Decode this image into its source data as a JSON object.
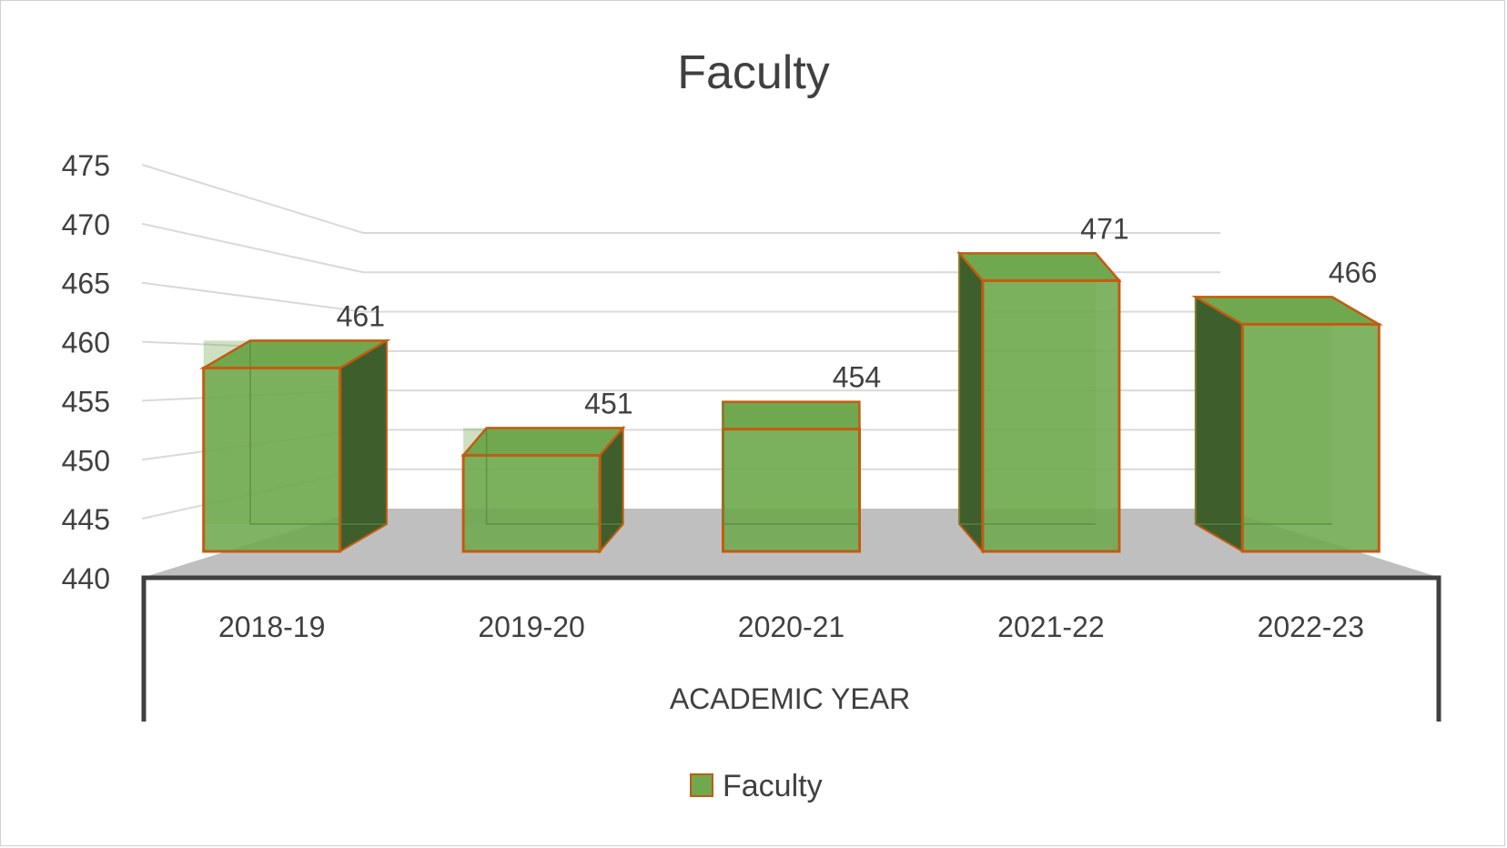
{
  "chart_data": {
    "type": "bar",
    "style": "3d-column",
    "title": "Faculty",
    "xlabel": "ACADEMIC YEAR",
    "ylabel": "",
    "categories": [
      "2018-19",
      "2019-20",
      "2020-21",
      "2021-22",
      "2022-23"
    ],
    "series": [
      {
        "name": "Faculty",
        "values": [
          461,
          451,
          454,
          471,
          466
        ]
      }
    ],
    "ylim": [
      440,
      475
    ],
    "yticks": [
      "440",
      "445",
      "450",
      "455",
      "460",
      "465",
      "470",
      "475"
    ],
    "data_labels": [
      "461",
      "451",
      "454",
      "471",
      "466"
    ],
    "grid": true,
    "legend": "bottom",
    "colors": {
      "bar_fill": "#70A84F",
      "bar_side": "#3E5F2C",
      "bar_edge": "#C55A11",
      "floor": "#BFBFBF",
      "grid": "#D9D9D9",
      "axis": "#404040",
      "text": "#404040"
    }
  }
}
